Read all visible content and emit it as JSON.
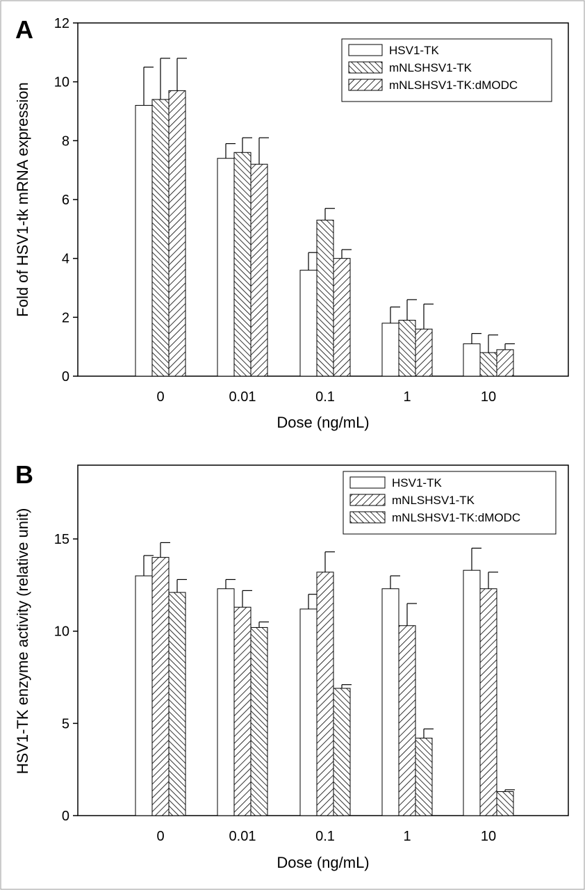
{
  "chart_data": [
    {
      "panel": "A",
      "type": "bar",
      "categories": [
        "0",
        "0.01",
        "0.1",
        "1",
        "10"
      ],
      "series": [
        {
          "name": "HSV1-TK",
          "values": [
            9.2,
            7.4,
            3.6,
            1.8,
            1.1
          ],
          "errors": [
            1.3,
            0.5,
            0.6,
            0.55,
            0.35
          ],
          "pattern": "open"
        },
        {
          "name": "mNLSHSV1-TK",
          "values": [
            9.4,
            7.6,
            5.3,
            1.9,
            0.8
          ],
          "errors": [
            1.4,
            0.5,
            0.4,
            0.7,
            0.6
          ],
          "pattern": "dense-diagonal"
        },
        {
          "name": "mNLSHSV1-TK:dMODC",
          "values": [
            9.7,
            7.2,
            4.0,
            1.6,
            0.9
          ],
          "errors": [
            1.1,
            0.9,
            0.3,
            0.85,
            0.2
          ],
          "pattern": "wide-diagonal"
        }
      ],
      "xlabel": "Dose (ng/mL)",
      "ylabel": "Fold of HSV1-tk mRNA expression",
      "ylim": [
        0,
        12
      ],
      "yticks": [
        "0",
        "2",
        "4",
        "6",
        "8",
        "10",
        "12"
      ],
      "legend_position": "top-right",
      "grid": false
    },
    {
      "panel": "B",
      "type": "bar",
      "categories": [
        "0",
        "0.01",
        "0.1",
        "1",
        "10"
      ],
      "series": [
        {
          "name": "HSV1-TK",
          "values": [
            13.0,
            12.3,
            11.2,
            12.3,
            13.3
          ],
          "errors": [
            1.1,
            0.5,
            0.8,
            0.7,
            1.2
          ],
          "pattern": "open"
        },
        {
          "name": "mNLSHSV1-TK",
          "values": [
            14.0,
            11.3,
            13.2,
            10.3,
            12.3
          ],
          "errors": [
            0.8,
            0.9,
            1.1,
            1.2,
            0.9
          ],
          "pattern": "wide-diagonal"
        },
        {
          "name": "mNLSHSV1-TK:dMODC",
          "values": [
            12.1,
            10.2,
            6.9,
            4.2,
            1.3
          ],
          "errors": [
            0.7,
            0.3,
            0.2,
            0.5,
            0.1
          ],
          "pattern": "dense-diagonal"
        }
      ],
      "xlabel": "Dose (ng/mL)",
      "ylabel": "HSV1-TK enzyme activity (relative unit)",
      "ylim": [
        0,
        19
      ],
      "yticks": [
        "0",
        "5",
        "10",
        "15"
      ],
      "legend_position": "top-right",
      "grid": false
    }
  ]
}
